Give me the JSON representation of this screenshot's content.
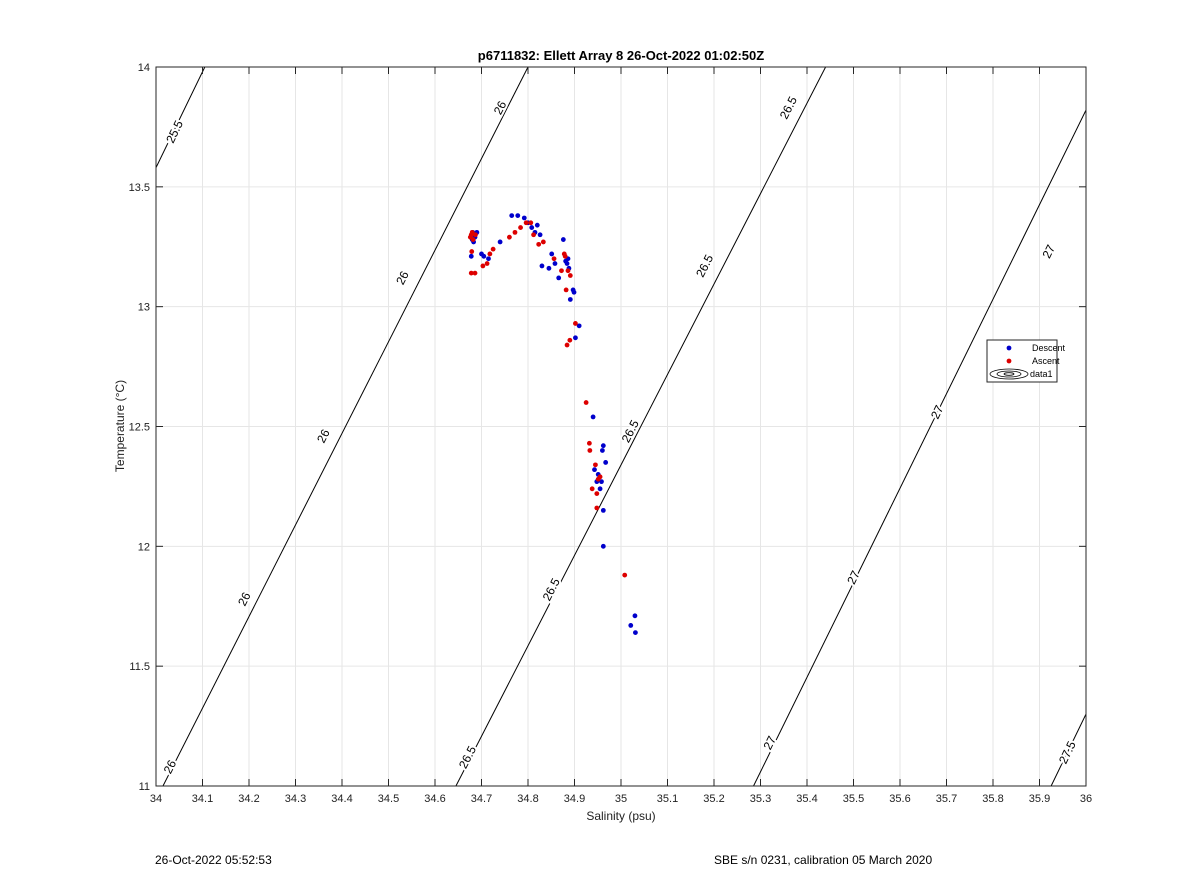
{
  "chart_data": {
    "type": "scatter",
    "title": "p6711832: Ellett Array 8 26-Oct-2022 01:02:50Z",
    "xlabel": "Salinity (psu)",
    "ylabel": "Temperature (°C)",
    "xlim": [
      34,
      36
    ],
    "ylim": [
      11,
      14
    ],
    "xticks": [
      "34",
      "34.1",
      "34.2",
      "34.3",
      "34.4",
      "34.5",
      "34.6",
      "34.7",
      "34.8",
      "34.9",
      "35",
      "35.1",
      "35.2",
      "35.3",
      "35.4",
      "35.5",
      "35.6",
      "35.7",
      "35.8",
      "35.9",
      "36"
    ],
    "yticks": [
      "11",
      "11.5",
      "12",
      "12.5",
      "13",
      "13.5",
      "14"
    ],
    "grid": true,
    "legend_position": "right",
    "legend": [
      {
        "name": "Descent",
        "color": "#0000cc",
        "marker": "dot"
      },
      {
        "name": "Ascent",
        "color": "#dd0000",
        "marker": "dot"
      },
      {
        "name": "data1",
        "color": "#000000",
        "marker": "contour"
      }
    ],
    "series": [
      {
        "name": "Descent",
        "color": "#0000cc",
        "points": [
          [
            34.681,
            13.31
          ],
          [
            34.684,
            13.3
          ],
          [
            34.686,
            13.29
          ],
          [
            34.68,
            13.28
          ],
          [
            34.683,
            13.27
          ],
          [
            34.678,
            13.21
          ],
          [
            34.69,
            13.31
          ],
          [
            34.7,
            13.22
          ],
          [
            34.705,
            13.21
          ],
          [
            34.715,
            13.2
          ],
          [
            34.74,
            13.27
          ],
          [
            34.765,
            13.38
          ],
          [
            34.778,
            13.38
          ],
          [
            34.792,
            13.37
          ],
          [
            34.8,
            13.35
          ],
          [
            34.808,
            13.33
          ],
          [
            34.815,
            13.31
          ],
          [
            34.82,
            13.34
          ],
          [
            34.826,
            13.3
          ],
          [
            34.83,
            13.17
          ],
          [
            34.845,
            13.16
          ],
          [
            34.851,
            13.22
          ],
          [
            34.858,
            13.18
          ],
          [
            34.866,
            13.12
          ],
          [
            34.876,
            13.28
          ],
          [
            34.881,
            13.19
          ],
          [
            34.884,
            13.18
          ],
          [
            34.886,
            13.2
          ],
          [
            34.888,
            13.16
          ],
          [
            34.891,
            13.03
          ],
          [
            34.897,
            13.07
          ],
          [
            34.899,
            13.06
          ],
          [
            34.902,
            12.87
          ],
          [
            34.91,
            12.92
          ],
          [
            34.94,
            12.54
          ],
          [
            34.943,
            12.32
          ],
          [
            34.948,
            12.27
          ],
          [
            34.951,
            12.3
          ],
          [
            34.955,
            12.24
          ],
          [
            34.958,
            12.27
          ],
          [
            34.96,
            12.4
          ],
          [
            34.962,
            12.42
          ],
          [
            34.967,
            12.35
          ],
          [
            34.962,
            12.15
          ],
          [
            34.962,
            12.0
          ],
          [
            35.021,
            11.67
          ],
          [
            35.03,
            11.71
          ],
          [
            35.031,
            11.64
          ]
        ]
      },
      {
        "name": "Ascent",
        "color": "#dd0000",
        "points": [
          [
            34.676,
            13.29
          ],
          [
            34.678,
            13.3
          ],
          [
            34.68,
            13.31
          ],
          [
            34.682,
            13.28
          ],
          [
            34.687,
            13.3
          ],
          [
            34.679,
            13.23
          ],
          [
            34.678,
            13.14
          ],
          [
            34.686,
            13.14
          ],
          [
            34.703,
            13.17
          ],
          [
            34.712,
            13.18
          ],
          [
            34.718,
            13.22
          ],
          [
            34.725,
            13.24
          ],
          [
            34.76,
            13.29
          ],
          [
            34.772,
            13.31
          ],
          [
            34.784,
            13.33
          ],
          [
            34.796,
            13.35
          ],
          [
            34.806,
            13.35
          ],
          [
            34.812,
            13.3
          ],
          [
            34.823,
            13.26
          ],
          [
            34.833,
            13.27
          ],
          [
            34.856,
            13.2
          ],
          [
            34.872,
            13.15
          ],
          [
            34.878,
            13.22
          ],
          [
            34.88,
            13.21
          ],
          [
            34.882,
            13.07
          ],
          [
            34.886,
            13.15
          ],
          [
            34.891,
            13.13
          ],
          [
            34.884,
            12.84
          ],
          [
            34.89,
            12.86
          ],
          [
            34.902,
            12.93
          ],
          [
            34.925,
            12.6
          ],
          [
            34.932,
            12.43
          ],
          [
            34.933,
            12.4
          ],
          [
            34.938,
            12.24
          ],
          [
            34.945,
            12.34
          ],
          [
            34.948,
            12.22
          ],
          [
            34.951,
            12.28
          ],
          [
            34.955,
            12.29
          ],
          [
            34.948,
            12.16
          ],
          [
            35.008,
            11.88
          ]
        ]
      }
    ],
    "contours": [
      {
        "label": "25.5",
        "points": [
          [
            34.0,
            13.58
          ],
          [
            34.105,
            14.0
          ]
        ],
        "label_positions": [
          [
            34.04,
            13.73
          ]
        ]
      },
      {
        "label": "26",
        "points": [
          [
            34.015,
            11.0
          ],
          [
            34.8,
            14.0
          ]
        ],
        "label_positions": [
          [
            34.03,
            11.08
          ],
          [
            34.19,
            11.78
          ],
          [
            34.36,
            12.46
          ],
          [
            34.53,
            13.12
          ],
          [
            34.74,
            13.83
          ]
        ]
      },
      {
        "label": "26.5",
        "points": [
          [
            34.645,
            11.0
          ],
          [
            35.44,
            14.0
          ]
        ],
        "label_positions": [
          [
            34.67,
            11.12
          ],
          [
            34.85,
            11.82
          ],
          [
            35.02,
            12.48
          ],
          [
            35.18,
            13.17
          ],
          [
            35.36,
            13.83
          ]
        ]
      },
      {
        "label": "27",
        "points": [
          [
            35.285,
            11.0
          ],
          [
            36.0,
            13.82
          ]
        ],
        "label_positions": [
          [
            35.32,
            11.18
          ],
          [
            35.5,
            11.87
          ],
          [
            35.68,
            12.56
          ],
          [
            35.92,
            13.23
          ]
        ]
      },
      {
        "label": "27.5",
        "points": [
          [
            35.925,
            11.0
          ],
          [
            36.0,
            11.3
          ]
        ],
        "label_positions": [
          [
            35.96,
            11.14
          ]
        ]
      }
    ]
  },
  "footer": {
    "left": "26-Oct-2022 05:52:53",
    "right": "SBE s/n 0231, calibration 05 March 2020"
  }
}
